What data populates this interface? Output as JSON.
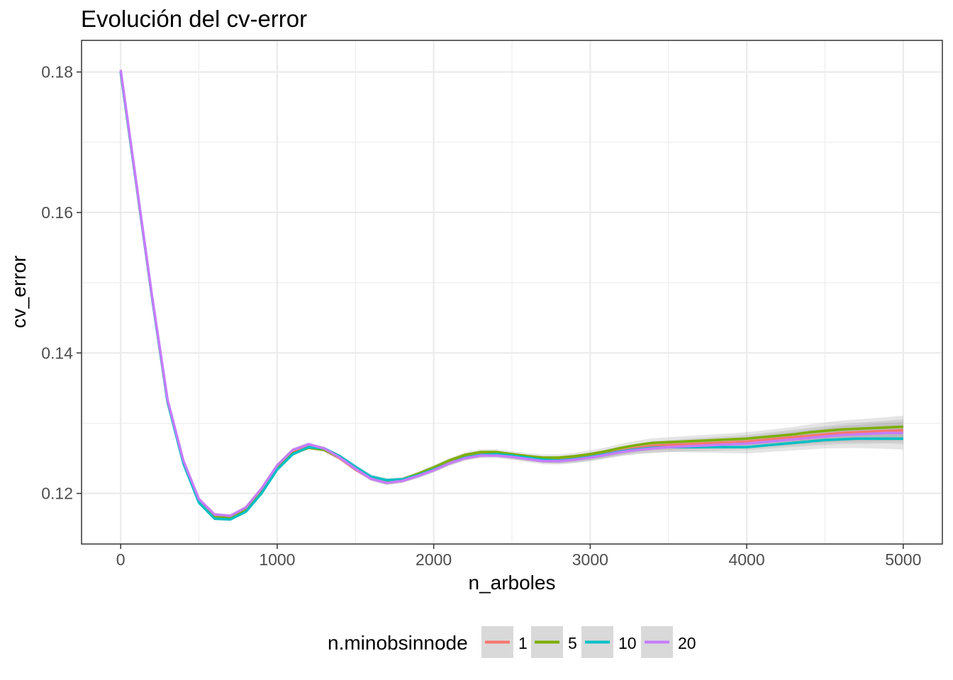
{
  "chart_data": {
    "type": "line",
    "title": "Evolución del cv-error",
    "xlabel": "n_arboles",
    "ylabel": "cv_error",
    "xlim": [
      -250,
      5250
    ],
    "ylim": [
      0.1128,
      0.1845
    ],
    "x_ticks": [
      0,
      1000,
      2000,
      3000,
      4000,
      5000
    ],
    "x_tick_labels": [
      "0",
      "1000",
      "2000",
      "3000",
      "4000",
      "5000"
    ],
    "y_ticks": [
      0.12,
      0.14,
      0.16,
      0.18
    ],
    "y_tick_labels": [
      "0.12",
      "0.14",
      "0.16",
      "0.18"
    ],
    "grid": true,
    "smoothed_with_band": true,
    "legend": {
      "title": "n.minobsinnode",
      "placement": "bottom",
      "entries": [
        "1",
        "5",
        "10",
        "20"
      ]
    },
    "x": [
      0,
      100,
      200,
      300,
      400,
      500,
      600,
      700,
      800,
      900,
      1000,
      1100,
      1200,
      1300,
      1400,
      1500,
      1600,
      1700,
      1800,
      1900,
      2000,
      2100,
      2200,
      2300,
      2400,
      2500,
      2600,
      2700,
      2800,
      2900,
      3000,
      3100,
      3200,
      3300,
      3400,
      3500,
      3600,
      3700,
      3800,
      3900,
      4000,
      4100,
      4200,
      4300,
      4400,
      4500,
      4600,
      4700,
      4800,
      4900,
      5000
    ],
    "series": [
      {
        "name": "1",
        "color": "#F8766D",
        "values": [
          0.18,
          0.164,
          0.148,
          0.133,
          0.1245,
          0.119,
          0.1166,
          0.1165,
          0.1178,
          0.1205,
          0.1238,
          0.126,
          0.1268,
          0.1262,
          0.125,
          0.1234,
          0.1221,
          0.1215,
          0.1218,
          0.1225,
          0.1234,
          0.1244,
          0.1252,
          0.1256,
          0.1256,
          0.1253,
          0.125,
          0.1248,
          0.1248,
          0.125,
          0.1253,
          0.1257,
          0.1261,
          0.1265,
          0.1268,
          0.1269,
          0.127,
          0.1271,
          0.1272,
          0.1273,
          0.1274,
          0.1276,
          0.1278,
          0.128,
          0.1282,
          0.1284,
          0.1286,
          0.1287,
          0.1288,
          0.1289,
          0.129
        ]
      },
      {
        "name": "5",
        "color": "#7CAE00",
        "values": [
          0.18,
          0.164,
          0.148,
          0.133,
          0.1245,
          0.119,
          0.1166,
          0.1165,
          0.1176,
          0.1202,
          0.1235,
          0.1257,
          0.1265,
          0.1262,
          0.1251,
          0.1235,
          0.1222,
          0.1217,
          0.122,
          0.1228,
          0.1237,
          0.1247,
          0.1255,
          0.1259,
          0.1259,
          0.1256,
          0.1253,
          0.1251,
          0.1251,
          0.1253,
          0.1256,
          0.126,
          0.1265,
          0.1269,
          0.1272,
          0.1273,
          0.1274,
          0.1275,
          0.1276,
          0.1277,
          0.1278,
          0.128,
          0.1282,
          0.1284,
          0.1287,
          0.1289,
          0.1291,
          0.1292,
          0.1293,
          0.1294,
          0.1295
        ]
      },
      {
        "name": "10",
        "color": "#00BFC4",
        "values": [
          0.18,
          0.164,
          0.148,
          0.133,
          0.1243,
          0.1187,
          0.1164,
          0.1163,
          0.1174,
          0.12,
          0.1234,
          0.1256,
          0.1266,
          0.1264,
          0.1253,
          0.1238,
          0.1224,
          0.1219,
          0.122,
          0.1226,
          0.1234,
          0.1243,
          0.1251,
          0.1255,
          0.1256,
          0.1254,
          0.1251,
          0.1248,
          0.1247,
          0.1249,
          0.1252,
          0.1256,
          0.126,
          0.1263,
          0.1265,
          0.1266,
          0.1266,
          0.1266,
          0.1266,
          0.1266,
          0.1266,
          0.1268,
          0.127,
          0.1272,
          0.1274,
          0.1276,
          0.1277,
          0.1278,
          0.1278,
          0.1278,
          0.1278
        ]
      },
      {
        "name": "20",
        "color": "#C77CFF",
        "values": [
          0.1803,
          0.1642,
          0.1482,
          0.1333,
          0.1247,
          0.1192,
          0.117,
          0.1168,
          0.118,
          0.1207,
          0.124,
          0.1262,
          0.127,
          0.1264,
          0.1251,
          0.1235,
          0.1221,
          0.1215,
          0.1218,
          0.1225,
          0.1233,
          0.1243,
          0.125,
          0.1254,
          0.1254,
          0.1252,
          0.1249,
          0.1246,
          0.1246,
          0.1248,
          0.1251,
          0.1255,
          0.1259,
          0.1262,
          0.1264,
          0.1266,
          0.1267,
          0.1268,
          0.1269,
          0.127,
          0.1271,
          0.1273,
          0.1275,
          0.1277,
          0.1279,
          0.1281,
          0.1283,
          0.1284,
          0.1285,
          0.1286,
          0.1286
        ]
      }
    ]
  }
}
